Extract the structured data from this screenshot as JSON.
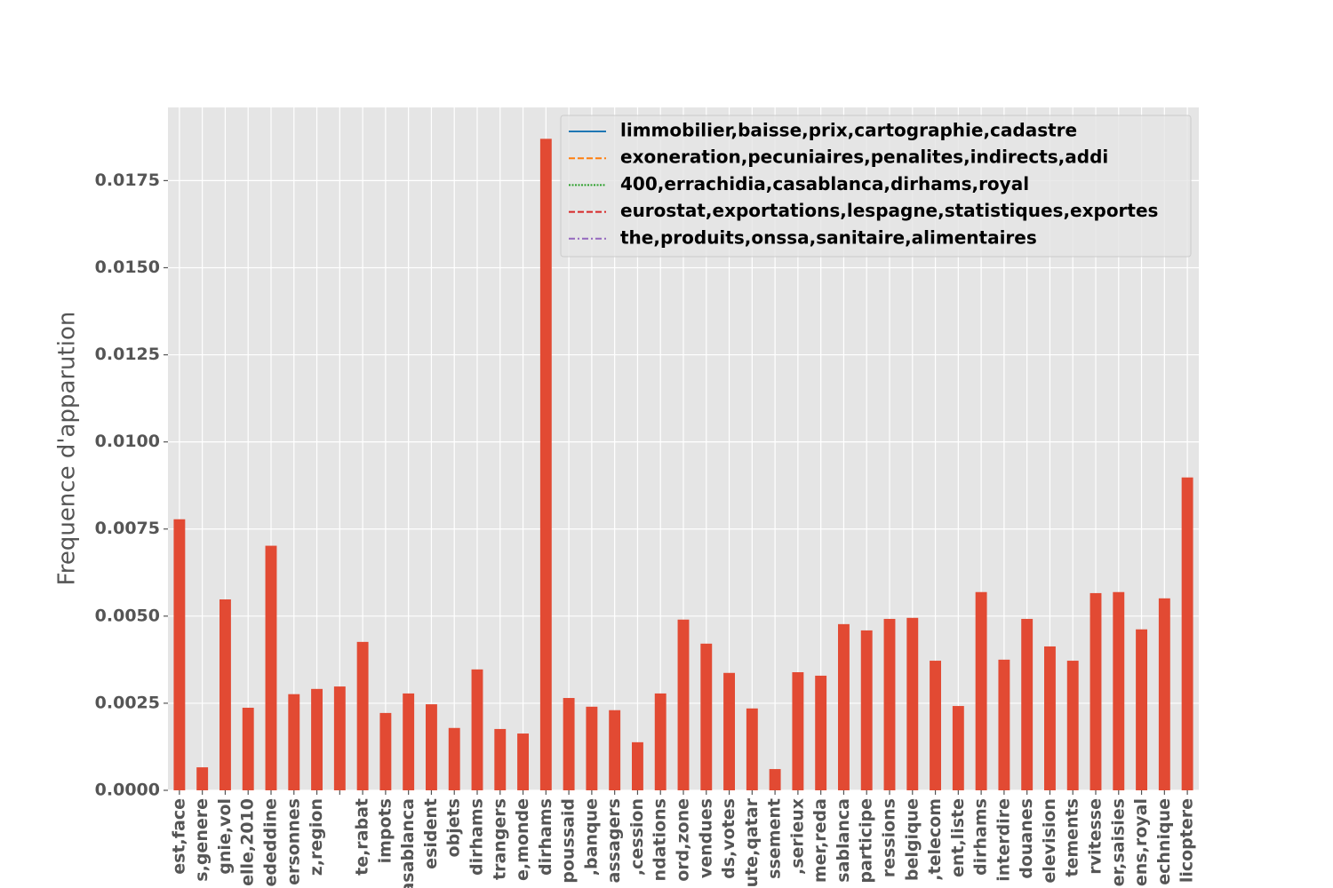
{
  "chart_data": {
    "type": "bar",
    "ylabel": "Frequence d'apparution",
    "categories": [
      "est,face",
      "s,genere",
      "gnie,vol",
      "elle,2010",
      "ededdine",
      "ersonnes",
      "z,region",
      null,
      "te,rabat",
      "impots",
      "casablanca",
      "esident",
      "objets",
      "dirhams",
      "trangers",
      "e,monde",
      "dirhams",
      "poussaid",
      ",banque",
      "assagers",
      ",cession",
      "ndations",
      "ord,zone",
      "vendues",
      "ds,votes",
      "ute,qatar",
      "ssement",
      ",serieux",
      "mer,reda",
      "sablanca",
      "participe",
      "ressions",
      "belgique",
      ",telecom",
      "ent,liste",
      "dirhams",
      "interdire",
      "douanes",
      "elevision",
      "tements",
      "rvitesse",
      "er,saisies",
      "ens,royal",
      "echnique",
      "licoptere"
    ],
    "values": [
      0.00778,
      0.00066,
      0.00548,
      0.00237,
      0.00702,
      0.00276,
      0.00291,
      0.00298,
      0.00426,
      0.00222,
      0.00278,
      0.00247,
      0.00179,
      0.00347,
      0.00176,
      0.00163,
      0.0187,
      0.00265,
      0.0024,
      0.0023,
      0.00138,
      0.00278,
      0.0049,
      0.00421,
      0.00337,
      0.00235,
      0.00061,
      0.00339,
      0.00329,
      0.00477,
      0.00459,
      0.00492,
      0.00495,
      0.00372,
      0.00242,
      0.00569,
      0.00375,
      0.00492,
      0.00413,
      0.00372,
      0.00566,
      0.00569,
      0.00462,
      0.00551,
      0.00898
    ],
    "color": "#E24A33",
    "ylim": [
      0,
      0.0196
    ],
    "yticks": [
      {
        "value": 0,
        "label": "0.0000"
      },
      {
        "value": 0.0025,
        "label": "0.0025"
      },
      {
        "value": 0.005,
        "label": "0.0050"
      },
      {
        "value": 0.0075,
        "label": "0.0075"
      },
      {
        "value": 0.01,
        "label": "0.0100"
      },
      {
        "value": 0.0125,
        "label": "0.0125"
      },
      {
        "value": 0.015,
        "label": "0.0150"
      },
      {
        "value": 0.0175,
        "label": "0.0175"
      }
    ],
    "grid": true,
    "legend_position": "upper right",
    "legend": [
      {
        "name": "limmobilier,baisse,prix,cartographie,cadastre",
        "color": "#1f77b4",
        "style": "solid"
      },
      {
        "name": "exoneration,pecuniaires,penalites,indirects,addi",
        "color": "#ff7f0e",
        "style": "dashed"
      },
      {
        "name": "400,errachidia,casablanca,dirhams,royal",
        "color": "#2ca02c",
        "style": "dotted"
      },
      {
        "name": "eurostat,exportations,lespagne,statistiques,exportes",
        "color": "#d62728",
        "style": "dashed"
      },
      {
        "name": "the,produits,onssa,sanitaire,alimentaires",
        "color": "#9467bd",
        "style": "dashdot"
      }
    ]
  }
}
